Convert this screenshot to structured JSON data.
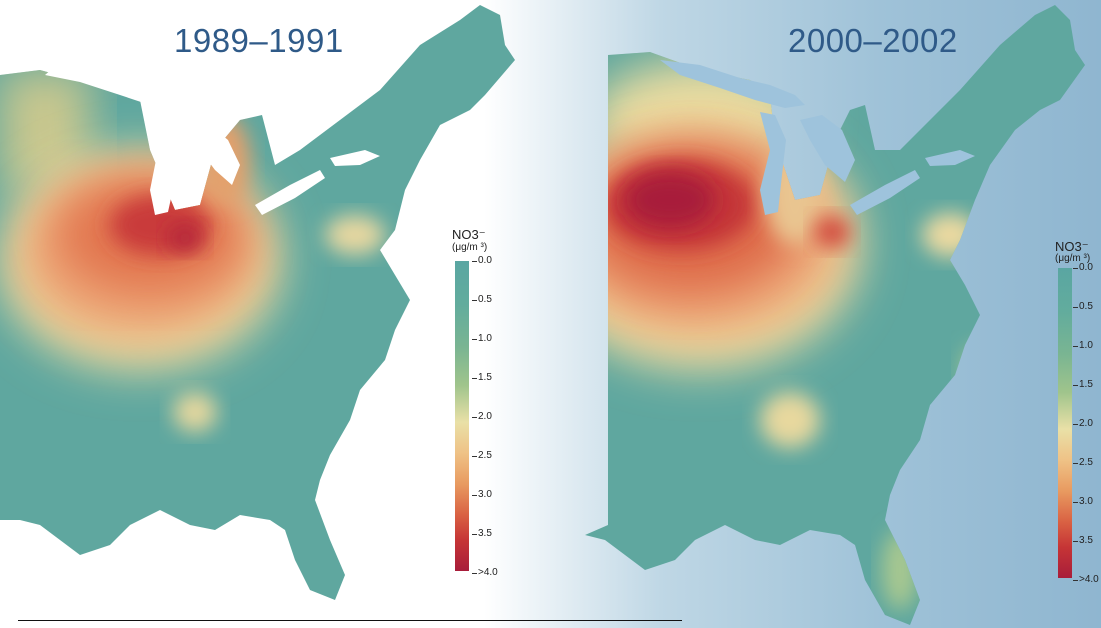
{
  "panels": [
    {
      "title": "1989–1991",
      "legend": {
        "title": "NO3⁻",
        "unit": "(μg/m ³)",
        "ticks": [
          "0.0",
          "0.5",
          "1.0",
          "1.5",
          "2.0",
          "2.5",
          "3.0",
          "3.5",
          ">4.0"
        ]
      }
    },
    {
      "title": "2000–2002",
      "legend": {
        "title": "NO3⁻",
        "unit": "(μg/m ³)",
        "ticks": [
          "0.0",
          "0.5",
          "1.0",
          "1.5",
          "2.0",
          "2.5",
          "3.0",
          "3.5",
          ">4.0"
        ]
      }
    }
  ],
  "colors": {
    "background_mid": "#5fa79f",
    "low": "#5aa6a2",
    "mid": "#ece3a5",
    "high": "#a81d3a",
    "title": "#2f5a88"
  }
}
